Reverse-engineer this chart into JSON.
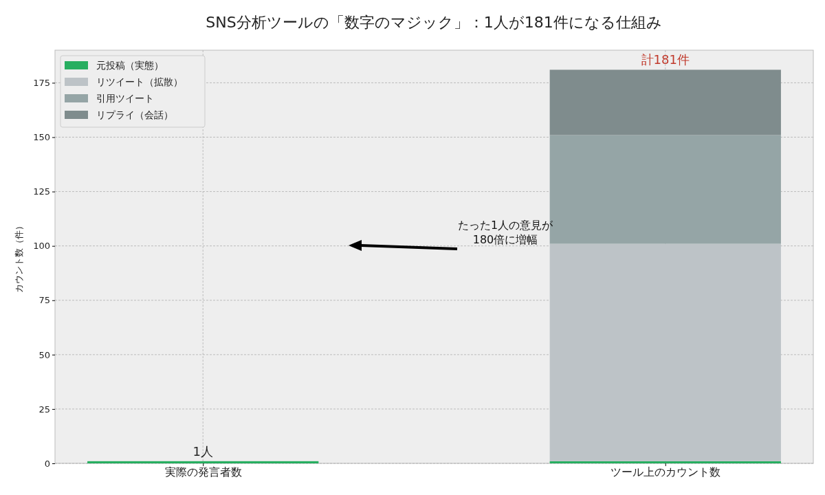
{
  "chart_data": {
    "type": "bar",
    "title": "SNS分析ツールの「数字のマジック」：1人が181件になる仕組み",
    "ylabel": "カウント数（件）",
    "categories": [
      "実際の発言者数",
      "ツール上のカウント数"
    ],
    "stacked": true,
    "series": [
      {
        "name": "元投稿（実態）",
        "color": "#27ae60",
        "values": [
          1,
          1
        ]
      },
      {
        "name": "リツイート（拡散）",
        "color": "#bdc3c7",
        "values": [
          null,
          100
        ]
      },
      {
        "name": "引用ツイート",
        "color": "#95a5a6",
        "values": [
          null,
          50
        ]
      },
      {
        "name": "リプライ（会話）",
        "color": "#7f8c8d",
        "values": [
          null,
          30
        ]
      }
    ],
    "totals": [
      "1人",
      "計181件"
    ],
    "annotations": [
      "たった1人の意見が\n180倍に増幅"
    ],
    "ylim": [
      0,
      190
    ],
    "yticks": [
      0,
      25,
      50,
      75,
      100,
      125,
      150,
      175
    ],
    "grid": true,
    "legend": "top left"
  }
}
